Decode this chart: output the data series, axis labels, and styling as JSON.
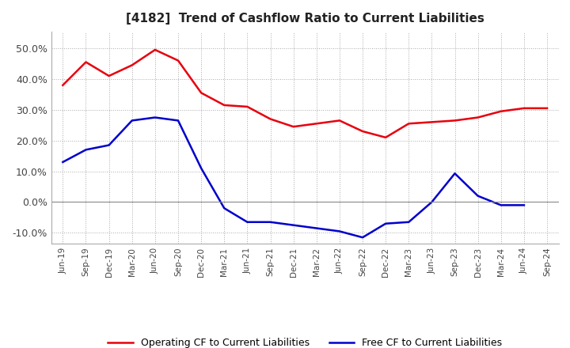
{
  "title": "[4182]  Trend of Cashflow Ratio to Current Liabilities",
  "x_labels": [
    "Jun-19",
    "Sep-19",
    "Dec-19",
    "Mar-20",
    "Jun-20",
    "Sep-20",
    "Dec-20",
    "Mar-21",
    "Jun-21",
    "Sep-21",
    "Dec-21",
    "Mar-22",
    "Jun-22",
    "Sep-22",
    "Dec-22",
    "Mar-23",
    "Jun-23",
    "Sep-23",
    "Dec-23",
    "Mar-24",
    "Jun-24",
    "Sep-24"
  ],
  "operating_cf": [
    0.38,
    0.455,
    0.41,
    0.445,
    0.495,
    0.46,
    0.355,
    0.315,
    0.31,
    0.27,
    0.245,
    0.255,
    0.265,
    0.23,
    0.21,
    0.255,
    0.26,
    0.265,
    0.275,
    0.295,
    0.305,
    0.305
  ],
  "free_cf": [
    0.13,
    0.17,
    0.185,
    0.265,
    0.275,
    0.265,
    0.11,
    -0.02,
    -0.065,
    -0.065,
    -0.075,
    -0.085,
    -0.095,
    -0.115,
    -0.07,
    -0.065,
    0.0,
    0.093,
    0.02,
    -0.01,
    -0.01,
    null
  ],
  "operating_color": "#e8000d",
  "free_color": "#0000cc",
  "ylim": [
    -0.135,
    0.555
  ],
  "yticks": [
    -0.1,
    0.0,
    0.1,
    0.2,
    0.3,
    0.4,
    0.5
  ],
  "ytick_labels": [
    "-10.0%",
    "0.0%",
    "10.0%",
    "20.0%",
    "30.0%",
    "40.0%",
    "50.0%"
  ],
  "background_color": "#ffffff",
  "grid_color": "#aaaaaa",
  "legend_operating": "Operating CF to Current Liabilities",
  "legend_free": "Free CF to Current Liabilities"
}
